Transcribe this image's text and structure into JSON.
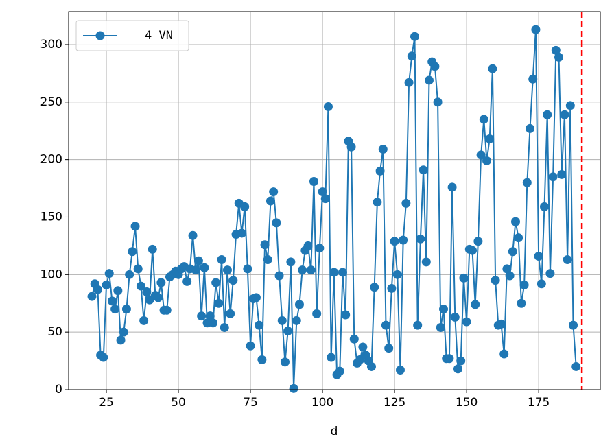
{
  "chart_data": {
    "type": "line",
    "x_label": "d",
    "x": [
      20,
      21,
      22,
      23,
      24,
      25,
      26,
      27,
      28,
      29,
      30,
      31,
      32,
      33,
      34,
      35,
      36,
      37,
      38,
      39,
      40,
      41,
      42,
      43,
      44,
      45,
      46,
      47,
      48,
      49,
      50,
      51,
      52,
      53,
      54,
      55,
      56,
      57,
      58,
      59,
      60,
      61,
      62,
      63,
      64,
      65,
      66,
      67,
      68,
      69,
      70,
      71,
      72,
      73,
      74,
      75,
      76,
      77,
      78,
      79,
      80,
      81,
      82,
      83,
      84,
      85,
      86,
      87,
      88,
      89,
      90,
      91,
      92,
      93,
      94,
      95,
      96,
      97,
      98,
      99,
      100,
      101,
      102,
      103,
      104,
      105,
      106,
      107,
      108,
      109,
      110,
      111,
      112,
      113,
      114,
      115,
      116,
      117,
      118,
      119,
      120,
      121,
      122,
      123,
      124,
      125,
      126,
      127,
      128,
      129,
      130,
      131,
      132,
      133,
      134,
      135,
      136,
      137,
      138,
      139,
      140,
      141,
      142,
      143,
      144,
      145,
      146,
      147,
      148,
      149,
      150,
      151,
      152,
      153,
      154,
      155,
      156,
      157,
      158,
      159,
      160,
      161,
      162,
      163,
      164,
      165,
      166,
      167,
      168,
      169,
      170,
      171,
      172,
      173,
      174,
      175,
      176,
      177,
      178,
      179,
      180,
      181,
      182,
      183,
      184,
      185,
      186,
      187,
      188
    ],
    "series": [
      {
        "name": "4 VN",
        "color": "#1f77b4",
        "values": [
          81,
          92,
          87,
          30,
          28,
          91,
          101,
          77,
          70,
          86,
          43,
          50,
          70,
          100,
          120,
          142,
          105,
          90,
          60,
          85,
          78,
          122,
          82,
          80,
          93,
          69,
          69,
          98,
          100,
          103,
          100,
          105,
          107,
          94,
          105,
          134,
          104,
          112,
          64,
          106,
          58,
          64,
          58,
          93,
          75,
          113,
          54,
          104,
          66,
          95,
          135,
          162,
          136,
          159,
          105,
          38,
          79,
          80,
          56,
          26,
          126,
          113,
          164,
          172,
          145,
          99,
          60,
          24,
          51,
          111,
          1,
          60,
          74,
          104,
          121,
          125,
          104,
          181,
          66,
          123,
          172,
          166,
          246,
          28,
          102,
          13,
          16,
          102,
          65,
          216,
          211,
          44,
          23,
          26,
          37,
          30,
          25,
          20,
          89,
          163,
          190,
          209,
          56,
          36,
          88,
          129,
          100,
          17,
          130,
          162,
          267,
          290,
          307,
          56,
          131,
          191,
          111,
          269,
          285,
          281,
          250,
          54,
          70,
          27,
          27,
          176,
          63,
          18,
          25,
          97,
          59,
          122,
          121,
          74,
          129,
          204,
          235,
          199,
          218,
          279,
          95,
          56,
          57,
          31,
          105,
          99,
          120,
          146,
          132,
          75,
          91,
          180,
          227,
          270,
          313,
          116,
          92,
          159,
          239,
          101,
          185,
          295,
          289,
          187,
          239,
          113,
          247,
          56,
          20
        ]
      }
    ],
    "xlim": [
      11.9,
      196.4
    ],
    "xticks": [
      25,
      50,
      75,
      100,
      125,
      150,
      175
    ],
    "ylim": [
      0,
      328.6
    ],
    "yticks": [
      0,
      50,
      100,
      150,
      200,
      250,
      300
    ],
    "grid": true,
    "legend": "upper left",
    "vline_x": 190,
    "vline_color": "#ff0000"
  }
}
